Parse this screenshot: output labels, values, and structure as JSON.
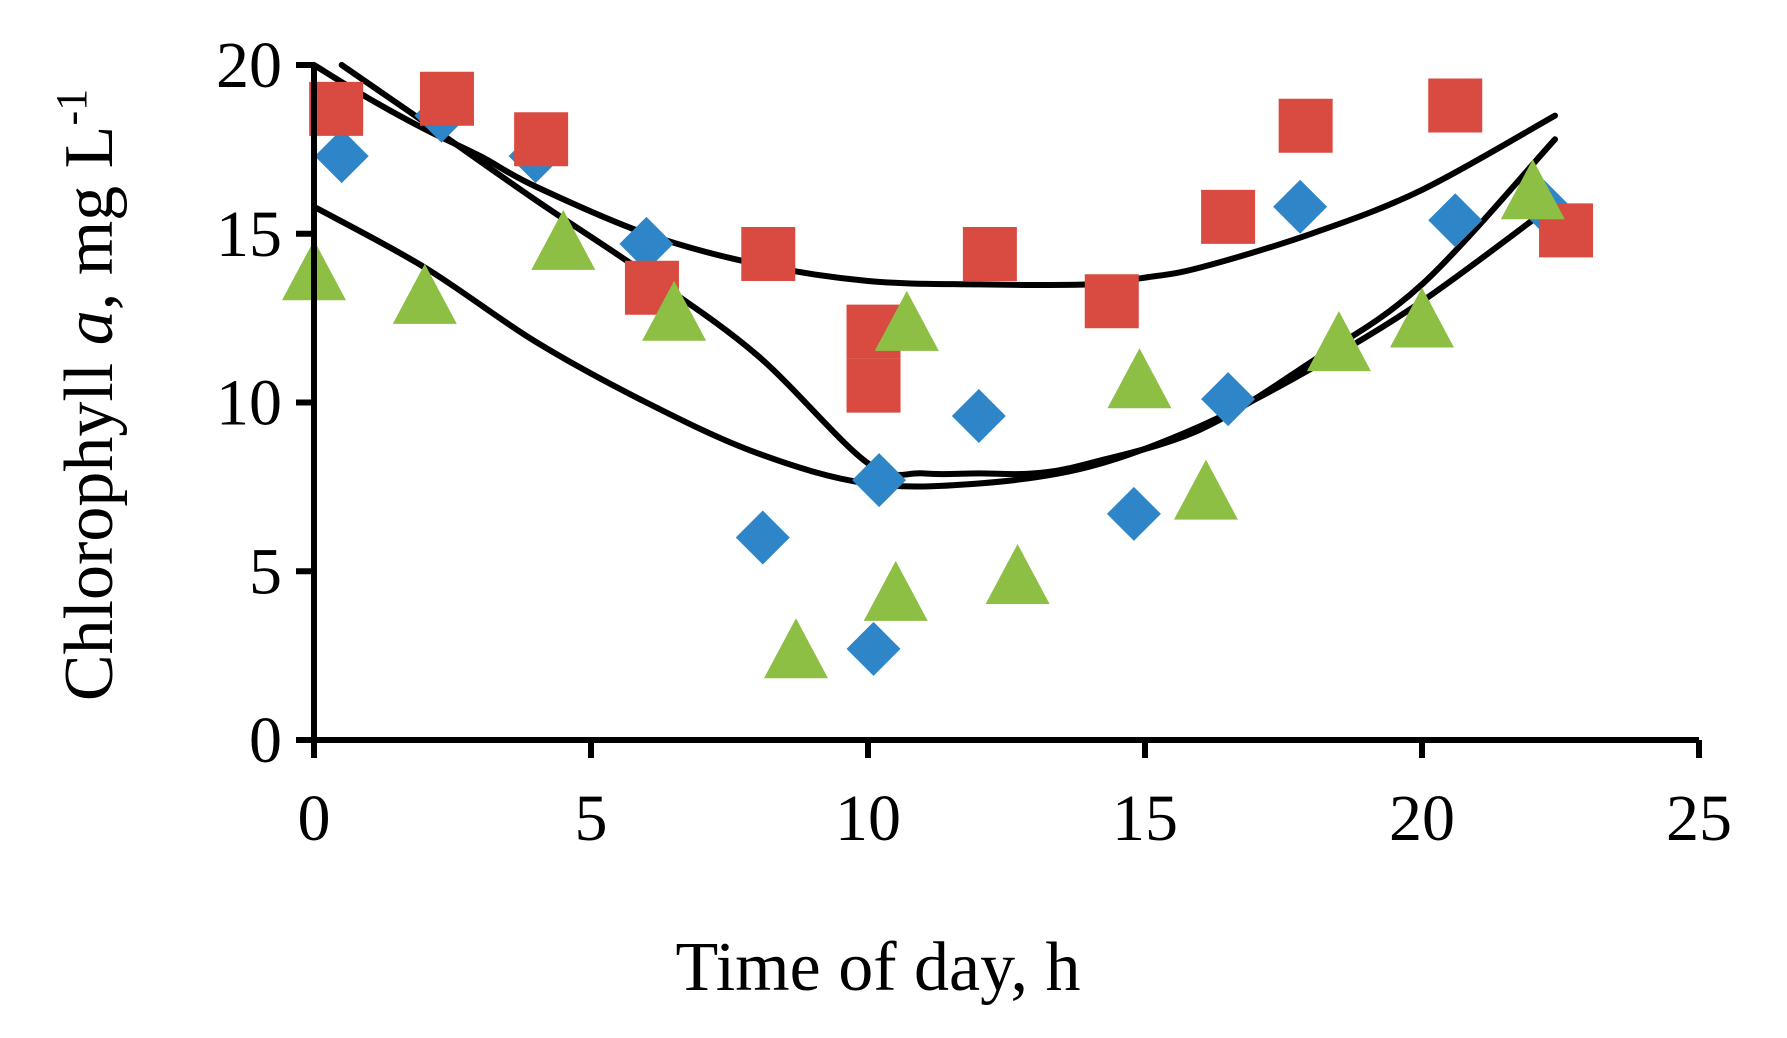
{
  "chart_data": {
    "type": "scatter",
    "title": "",
    "xlabel": "Time of day, h",
    "ylabel": {
      "prefix": "Chlorophyll ",
      "italic": "a",
      "suffix": ", mg L",
      "sup": "-1"
    },
    "xlim": [
      0,
      25
    ],
    "ylim": [
      0,
      20
    ],
    "xticks": [
      "0",
      "5",
      "10",
      "15",
      "20",
      "25"
    ],
    "yticks": [
      "0",
      "5",
      "10",
      "15",
      "20"
    ],
    "grid": false,
    "series": [
      {
        "name": "blue",
        "marker": "diamond",
        "color": "#2E86C8",
        "x": [
          0.5,
          2.3,
          4.0,
          6.0,
          8.1,
          10.2,
          10.1,
          12.0,
          14.8,
          16.5,
          17.8,
          20.6,
          22.2
        ],
        "y": [
          17.3,
          18.5,
          17.3,
          14.7,
          6.0,
          7.7,
          2.7,
          9.6,
          6.7,
          10.1,
          15.8,
          15.4,
          15.8
        ],
        "fit": [
          [
            0.5,
            20.0
          ],
          [
            2,
            18.3
          ],
          [
            4,
            16.0
          ],
          [
            6,
            13.8
          ],
          [
            8,
            11.4
          ],
          [
            10,
            8.2
          ],
          [
            11,
            7.9
          ],
          [
            12,
            7.9
          ],
          [
            13,
            7.9
          ],
          [
            14,
            8.2
          ],
          [
            16,
            9.2
          ],
          [
            18,
            11.2
          ],
          [
            20,
            13.5
          ],
          [
            22.4,
            17.8
          ]
        ]
      },
      {
        "name": "red",
        "marker": "square",
        "color": "#D94A40",
        "x": [
          0.4,
          2.4,
          4.1,
          6.1,
          8.2,
          10.1,
          10.1,
          12.2,
          14.4,
          16.5,
          17.9,
          20.6,
          22.6
        ],
        "y": [
          18.7,
          19.0,
          17.8,
          13.4,
          14.4,
          10.5,
          12.1,
          14.4,
          13.0,
          15.5,
          18.2,
          18.8,
          15.1
        ],
        "fit": [
          [
            0,
            20.0
          ],
          [
            1,
            19.0
          ],
          [
            2,
            18.1
          ],
          [
            3,
            17.3
          ],
          [
            4,
            16.4
          ],
          [
            6,
            15.0
          ],
          [
            8,
            14.1
          ],
          [
            10,
            13.6
          ],
          [
            12,
            13.5
          ],
          [
            14,
            13.5
          ],
          [
            15,
            13.7
          ],
          [
            16,
            14.0
          ],
          [
            18,
            15.0
          ],
          [
            20,
            16.3
          ],
          [
            22.4,
            18.5
          ]
        ]
      },
      {
        "name": "green",
        "marker": "triangle",
        "color": "#8CBF44",
        "x": [
          0.0,
          2.0,
          4.5,
          6.5,
          8.7,
          10.7,
          10.5,
          12.7,
          14.9,
          16.1,
          18.5,
          20.0,
          22.0
        ],
        "y": [
          13.8,
          13.1,
          14.7,
          12.6,
          2.6,
          12.3,
          4.3,
          4.8,
          10.6,
          7.3,
          11.7,
          12.4,
          16.2
        ],
        "fit": [
          [
            0,
            15.8
          ],
          [
            2,
            14.0
          ],
          [
            4,
            11.8
          ],
          [
            6,
            10.0
          ],
          [
            8,
            8.5
          ],
          [
            10,
            7.6
          ],
          [
            12,
            7.6
          ],
          [
            14,
            8.1
          ],
          [
            16,
            9.3
          ],
          [
            18,
            11.0
          ],
          [
            20,
            13.0
          ],
          [
            22.4,
            15.9
          ]
        ]
      }
    ]
  }
}
